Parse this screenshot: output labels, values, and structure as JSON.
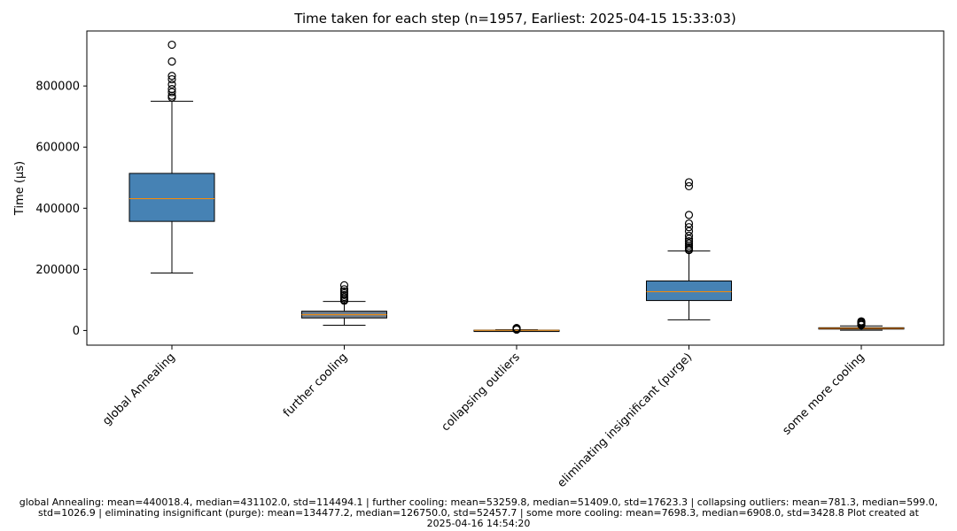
{
  "chart_data": {
    "type": "box",
    "title": "Time taken for each step (n=1957, Earliest: 2025-04-15 15:33:03)",
    "xlabel": "",
    "ylabel": "Time (µs)",
    "ylim": [
      -48000,
      980000
    ],
    "yticks": [
      0,
      200000,
      400000,
      600000,
      800000
    ],
    "ytick_labels": [
      "0",
      "200000",
      "400000",
      "600000",
      "800000"
    ],
    "grid": false,
    "categories": [
      "global Annealing",
      "further cooling",
      "collapsing outliers",
      "eliminating insignificant (purge)",
      "some more cooling"
    ],
    "boxes": [
      {
        "label": "global Annealing",
        "whisker_low": 188000,
        "q1": 357000,
        "median": 431102.0,
        "q3": 514000,
        "whisker_high": 750000,
        "fill": "#4682b4",
        "outliers": [
          935000,
          880000,
          833000,
          822000,
          805000,
          790000,
          780000,
          768000,
          762000
        ]
      },
      {
        "label": "further cooling",
        "whisker_low": 17000,
        "q1": 41000,
        "median": 51409.0,
        "q3": 63000,
        "whisker_high": 95000,
        "fill": "#708090",
        "outliers": [
          148000,
          135000,
          128000,
          122000,
          116000,
          110000,
          105000,
          100000,
          97000
        ]
      },
      {
        "label": "collapsing outliers",
        "whisker_low": 0,
        "q1": 300,
        "median": 599.0,
        "q3": 1000,
        "whisker_high": 2200,
        "fill": "#4682b4",
        "outliers": [
          8000,
          6500,
          5500,
          4500,
          3500,
          2800
        ]
      },
      {
        "label": "eliminating insignificant (purge)",
        "whisker_low": 35000,
        "q1": 98000,
        "median": 126750.0,
        "q3": 162000,
        "whisker_high": 260000,
        "fill": "#4682b4",
        "outliers": [
          485000,
          472000,
          378000,
          350000,
          338000,
          325000,
          310000,
          300000,
          292000,
          285000,
          278000,
          272000,
          267000,
          263000
        ]
      },
      {
        "label": "some more cooling",
        "whisker_low": 1000,
        "q1": 5500,
        "median": 6908.0,
        "q3": 9000,
        "whisker_high": 15000,
        "fill": "#4682b4",
        "outliers": [
          30000,
          27000,
          24000,
          21000,
          18000
        ]
      }
    ],
    "colors": {
      "median": "#ff8c00",
      "edge": "#000000"
    }
  },
  "footer": {
    "line1": "global Annealing: mean=440018.4, median=431102.0, std=114494.1 | further cooling: mean=53259.8, median=51409.0, std=17623.3 | collapsing outliers: mean=781.3, median=599.0,",
    "line2": "std=1026.9 | eliminating insignificant (purge): mean=134477.2, median=126750.0, std=52457.7 | some more cooling: mean=7698.3, median=6908.0, std=3428.8    Plot created at",
    "line3": "2025-04-16 14:54:20"
  }
}
